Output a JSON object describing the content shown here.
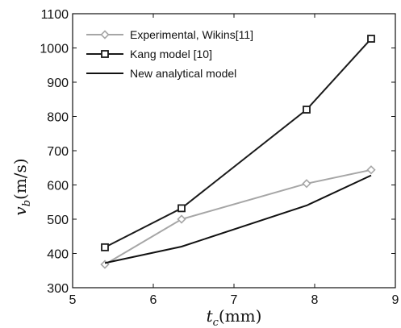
{
  "chart_data": {
    "type": "line",
    "xlabel": "t_c (mm)",
    "xlabel_main": "t",
    "xlabel_sub": "c",
    "xlabel_unit": "(mm)",
    "ylabel": "v_b (m/s)",
    "ylabel_main": "v",
    "ylabel_sub": "b",
    "ylabel_unit": "(m/s)",
    "xlim": [
      5,
      9
    ],
    "ylim": [
      300,
      1100
    ],
    "xticks": [
      5,
      6,
      7,
      8,
      9
    ],
    "yticks": [
      300,
      400,
      500,
      600,
      700,
      800,
      900,
      1000,
      1100
    ],
    "grid": false,
    "legend_position": "top-left",
    "series": [
      {
        "name": "Experimental, Wikins[11]",
        "marker": "diamond",
        "color": "#a6a6a6",
        "x": [
          5.4,
          6.35,
          7.9,
          8.7
        ],
        "y": [
          368,
          500,
          604,
          644
        ]
      },
      {
        "name": "Kang model [10]",
        "marker": "square",
        "color": "#1a1a1a",
        "x": [
          5.4,
          6.35,
          7.9,
          8.7
        ],
        "y": [
          418,
          532,
          820,
          1027
        ]
      },
      {
        "name": "New analytical model",
        "marker": "none",
        "color": "#111111",
        "x": [
          5.4,
          6.35,
          7.9,
          8.7
        ],
        "y": [
          372,
          420,
          540,
          628
        ]
      }
    ]
  }
}
